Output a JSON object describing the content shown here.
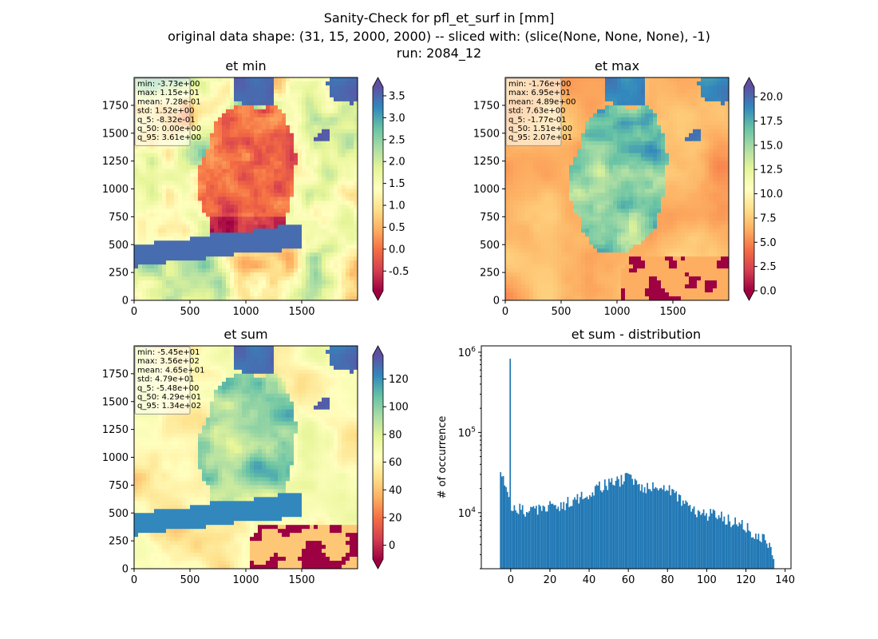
{
  "suptitle": {
    "line1": "Sanity-Check for pfl_et_surf in [mm]",
    "line2": "original data shape: (31, 15, 2000, 2000) -- sliced with: (slice(None, None, None), -1)",
    "line3": "run: 2084_12"
  },
  "colors": {
    "spectral": [
      "#9e0142",
      "#d53e4f",
      "#f46d43",
      "#fdae61",
      "#fee08b",
      "#ffffbf",
      "#e6f598",
      "#abdda4",
      "#66c2a5",
      "#3288bd",
      "#5e4fa2"
    ],
    "under": "#9e0142",
    "over": "#5e4fa2",
    "hist_bar": "#1f77b4"
  },
  "chart_data": [
    {
      "type": "heatmap",
      "title": "et min",
      "xlim": [
        0,
        2000
      ],
      "ylim": [
        0,
        2000
      ],
      "x_ticks": [
        "0",
        "500",
        "1000",
        "1500"
      ],
      "y_ticks": [
        "0",
        "250",
        "500",
        "750",
        "1000",
        "1250",
        "1500",
        "1750"
      ],
      "colorbar": {
        "vmin": -0.95,
        "vmax": 3.7,
        "extend": "both",
        "ticks": [
          "-0.5",
          "0.0",
          "0.5",
          "1.0",
          "1.5",
          "2.0",
          "2.5",
          "3.0",
          "3.5"
        ],
        "tick_values": [
          -0.5,
          0,
          0.5,
          1,
          1.5,
          2,
          2.5,
          3,
          3.5
        ]
      },
      "stats": [
        "min: -3.73e+00",
        "max: 1.15e+01",
        "mean: 7.28e-01",
        "std: 1.52e+00",
        "q_5: -8.32e-01",
        "q_50: 0.00e+00",
        "q_95: 3.61e+00"
      ]
    },
    {
      "type": "heatmap",
      "title": "et max",
      "xlim": [
        0,
        2000
      ],
      "ylim": [
        0,
        2000
      ],
      "x_ticks": [
        "0",
        "500",
        "1000",
        "1500"
      ],
      "y_ticks": [
        "0",
        "250",
        "500",
        "750",
        "1000",
        "1250",
        "1500",
        "1750"
      ],
      "colorbar": {
        "vmin": 0,
        "vmax": 21,
        "extend": "both",
        "ticks": [
          "0.0",
          "2.5",
          "5.0",
          "7.5",
          "10.0",
          "12.5",
          "15.0",
          "17.5",
          "20.0"
        ],
        "tick_values": [
          0,
          2.5,
          5,
          7.5,
          10,
          12.5,
          15,
          17.5,
          20
        ]
      },
      "stats": [
        "min: -1.76e+00",
        "max: 6.95e+01",
        "mean: 4.89e+00",
        "std: 7.63e+00",
        "q_5: -1.77e-01",
        "q_50: 1.51e+00",
        "q_95: 2.07e+01"
      ]
    },
    {
      "type": "heatmap",
      "title": "et sum",
      "xlim": [
        0,
        2000
      ],
      "ylim": [
        0,
        2000
      ],
      "x_ticks": [
        "0",
        "500",
        "1000",
        "1500"
      ],
      "y_ticks": [
        "0",
        "250",
        "500",
        "750",
        "1000",
        "1250",
        "1500",
        "1750"
      ],
      "colorbar": {
        "vmin": -10,
        "vmax": 137,
        "extend": "both",
        "ticks": [
          "0",
          "20",
          "40",
          "60",
          "80",
          "100",
          "120"
        ],
        "tick_values": [
          0,
          20,
          40,
          60,
          80,
          100,
          120
        ]
      },
      "stats": [
        "min: -5.45e+01",
        "max: 3.56e+02",
        "mean: 4.65e+01",
        "std: 4.79e+01",
        "q_5: -5.48e+00",
        "q_50: 4.29e+01",
        "q_95: 1.34e+02"
      ]
    },
    {
      "type": "bar",
      "title": "et sum - distribution",
      "ylabel": "# of occurrence",
      "xlabel": "",
      "xlim": [
        -15,
        143
      ],
      "ylim": [
        2000,
        1200000
      ],
      "yscale": "log",
      "x_ticks": [
        0,
        20,
        40,
        60,
        80,
        100,
        120,
        140
      ],
      "y_ticks": [
        {
          "v": 10000,
          "base": "10",
          "exp": "4"
        },
        {
          "v": 100000,
          "base": "10",
          "exp": "5"
        },
        {
          "v": 1000000,
          "base": "10",
          "exp": "6"
        }
      ],
      "bin_range": [
        -5.5,
        134.5
      ],
      "bin_width": 0.7,
      "spike": {
        "x": -0.7,
        "count": 830000
      },
      "profile": [
        [
          -5.5,
          40000
        ],
        [
          -4.8,
          37000
        ],
        [
          -3.5,
          24000
        ],
        [
          -2,
          18000
        ],
        [
          -1,
          17000
        ],
        [
          0,
          12000
        ],
        [
          2,
          11500
        ],
        [
          5,
          11000
        ],
        [
          8,
          10500
        ],
        [
          10,
          11000
        ],
        [
          15,
          11500
        ],
        [
          20,
          12000
        ],
        [
          25,
          12500
        ],
        [
          30,
          13500
        ],
        [
          35,
          15500
        ],
        [
          40,
          18000
        ],
        [
          45,
          21000
        ],
        [
          50,
          23000
        ],
        [
          55,
          25000
        ],
        [
          58,
          26500
        ],
        [
          60,
          27000
        ],
        [
          62,
          25500
        ],
        [
          65,
          23000
        ],
        [
          70,
          20500
        ],
        [
          75,
          20000
        ],
        [
          78,
          20500
        ],
        [
          80,
          21000
        ],
        [
          82,
          19500
        ],
        [
          85,
          16000
        ],
        [
          90,
          12500
        ],
        [
          95,
          10500
        ],
        [
          100,
          9500
        ],
        [
          105,
          9500
        ],
        [
          110,
          8500
        ],
        [
          115,
          7500
        ],
        [
          120,
          6500
        ],
        [
          125,
          5500
        ],
        [
          130,
          4500
        ],
        [
          132,
          3800
        ],
        [
          134.5,
          2600
        ]
      ]
    }
  ]
}
